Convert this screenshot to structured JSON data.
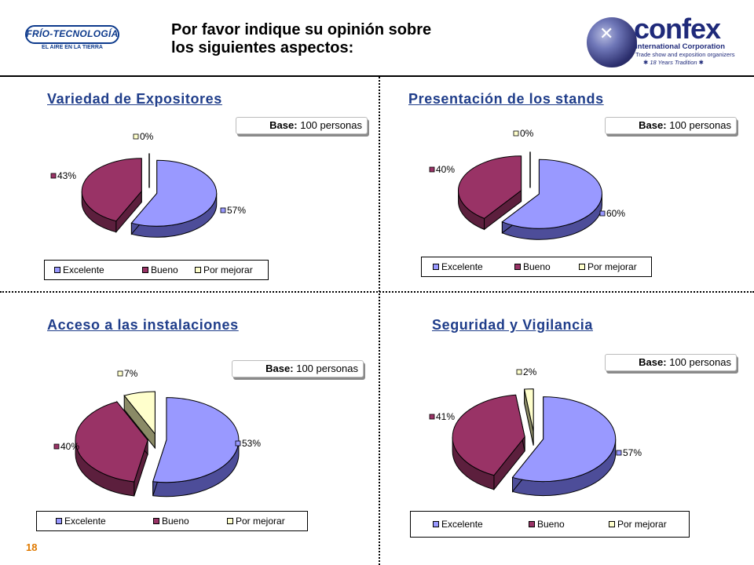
{
  "header": {
    "title_line1": "Por favor indique su opinión sobre",
    "title_line2": "los siguientes aspectos:",
    "left_logo": {
      "brand": "FRÍO-TECNOLOGÍA",
      "tagline": "EL AIRE EN LA TIERRA"
    },
    "right_logo": {
      "brand": "confex",
      "corporation": "International Corporation",
      "slogan": "Trade show and exposition organizers",
      "tradition": "18 Years Tradition",
      "icon": "star-globe-icon"
    }
  },
  "base_label": "Base:",
  "base_value": "100 personas",
  "legend_labels": [
    "Excelente",
    "Bueno",
    "Por mejorar"
  ],
  "colors": {
    "excelente": "#9999ff",
    "bueno": "#993366",
    "por_mejorar": "#ffffcc",
    "title": "#1f3d8a",
    "page_number": "#e07a00"
  },
  "page_number": "18",
  "chart_data": [
    {
      "type": "pie",
      "title": "Variedad de Expositores",
      "categories": [
        "Excelente",
        "Bueno",
        "Por mejorar"
      ],
      "values": [
        57,
        43,
        0
      ],
      "labels": [
        "57%",
        "43%",
        "0%"
      ]
    },
    {
      "type": "pie",
      "title": "Presentación de los stands",
      "categories": [
        "Excelente",
        "Bueno",
        "Por mejorar"
      ],
      "values": [
        60,
        40,
        0
      ],
      "labels": [
        "60%",
        "40%",
        "0%"
      ]
    },
    {
      "type": "pie",
      "title": "Acceso a las instalaciones",
      "categories": [
        "Excelente",
        "Bueno",
        "Por mejorar"
      ],
      "values": [
        53,
        40,
        7
      ],
      "labels": [
        "53%",
        "40%",
        "7%"
      ]
    },
    {
      "type": "pie",
      "title": "Seguridad y Vigilancia",
      "categories": [
        "Excelente",
        "Bueno",
        "Por mejorar"
      ],
      "values": [
        57,
        41,
        2
      ],
      "labels": [
        "57%",
        "41%",
        "2%"
      ]
    }
  ]
}
